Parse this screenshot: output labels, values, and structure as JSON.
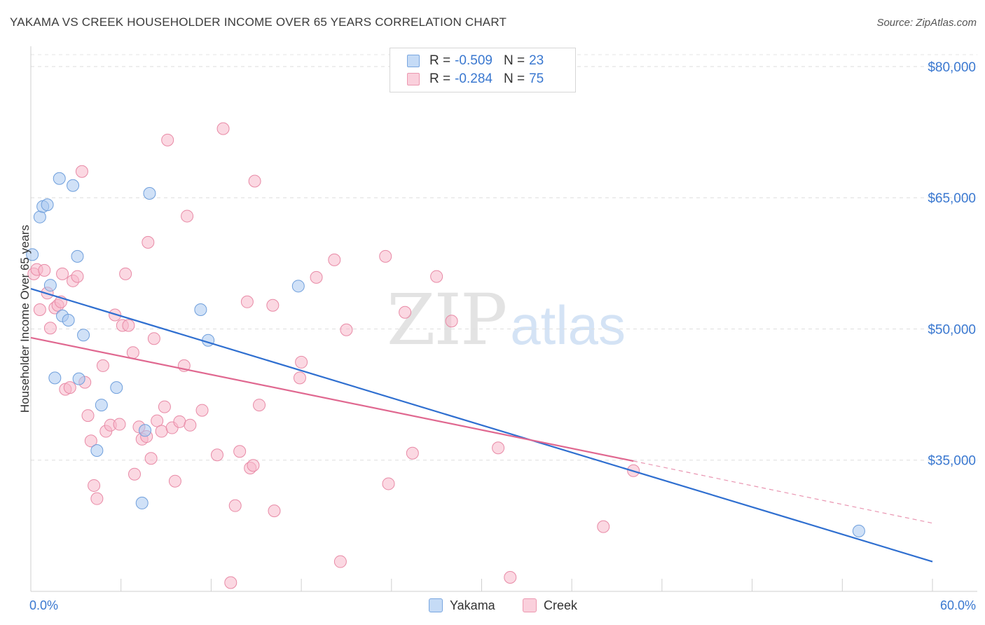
{
  "header": {
    "title": "YAKAMA VS CREEK HOUSEHOLDER INCOME OVER 65 YEARS CORRELATION CHART",
    "source": "Source: ZipAtlas.com"
  },
  "legend": {
    "rows": [
      {
        "r_label": "R =",
        "r_value": "-0.509",
        "n_label": "N =",
        "n_value": "23",
        "color": "#a9c8f0"
      },
      {
        "r_label": "R =",
        "r_value": "-0.284",
        "n_label": "N =",
        "n_value": "75",
        "color": "#f7b8cb"
      }
    ]
  },
  "watermark": {
    "zip": "ZIP",
    "atlas": "atlas"
  },
  "chart_data": {
    "type": "scatter",
    "title": "YAKAMA VS CREEK HOUSEHOLDER INCOME OVER 65 YEARS CORRELATION CHART",
    "xlabel": "",
    "ylabel": "Householder Income Over 65 years",
    "xlim": [
      0,
      60
    ],
    "ylim": [
      20000,
      82000
    ],
    "x_tick_labels": [
      "0.0%",
      "60.0%"
    ],
    "y_ticks": [
      35000,
      50000,
      65000,
      80000
    ],
    "y_tick_labels": [
      "$35,000",
      "$50,000",
      "$65,000",
      "$80,000"
    ],
    "grid": true,
    "legend_position": "bottom-center",
    "series": [
      {
        "name": "Yakama",
        "color": "#a9c8f0",
        "stroke": "#6f9fdc",
        "line_color": "#2f6fd0",
        "trend": {
          "x": [
            0,
            60
          ],
          "y": [
            54600,
            23400
          ]
        },
        "points": [
          [
            0.1,
            58500
          ],
          [
            0.6,
            62800
          ],
          [
            0.8,
            64000
          ],
          [
            1.1,
            64200
          ],
          [
            1.3,
            55000
          ],
          [
            1.6,
            44400
          ],
          [
            1.9,
            67200
          ],
          [
            2.1,
            51500
          ],
          [
            2.5,
            51000
          ],
          [
            2.8,
            66400
          ],
          [
            3.1,
            58300
          ],
          [
            3.2,
            44300
          ],
          [
            3.5,
            49300
          ],
          [
            4.4,
            36100
          ],
          [
            4.7,
            41300
          ],
          [
            5.7,
            43300
          ],
          [
            7.4,
            30100
          ],
          [
            7.6,
            38400
          ],
          [
            7.9,
            65500
          ],
          [
            11.3,
            52200
          ],
          [
            11.8,
            48700
          ],
          [
            17.8,
            54900
          ],
          [
            55.1,
            26900
          ]
        ]
      },
      {
        "name": "Creek",
        "color": "#f7b8cb",
        "stroke": "#e88aa6",
        "line_color": "#e06890",
        "trend": {
          "x": [
            0,
            40.1
          ],
          "y": [
            49000,
            34900
          ],
          "dashed_to": {
            "x": 60,
            "y": 27800
          }
        },
        "points": [
          [
            0.2,
            56300
          ],
          [
            0.4,
            56800
          ],
          [
            0.6,
            52200
          ],
          [
            0.9,
            56700
          ],
          [
            1.1,
            54100
          ],
          [
            1.3,
            50100
          ],
          [
            1.6,
            52400
          ],
          [
            1.8,
            52700
          ],
          [
            2.1,
            56300
          ],
          [
            2.3,
            43100
          ],
          [
            2.6,
            43300
          ],
          [
            2.8,
            55500
          ],
          [
            3.1,
            56000
          ],
          [
            3.4,
            68000
          ],
          [
            3.6,
            43900
          ],
          [
            3.8,
            40100
          ],
          [
            4.0,
            37200
          ],
          [
            4.2,
            32100
          ],
          [
            4.4,
            30600
          ],
          [
            4.8,
            45800
          ],
          [
            5.0,
            38300
          ],
          [
            5.3,
            39000
          ],
          [
            5.6,
            51600
          ],
          [
            5.9,
            39100
          ],
          [
            6.1,
            50400
          ],
          [
            6.3,
            56300
          ],
          [
            6.5,
            50400
          ],
          [
            6.8,
            47300
          ],
          [
            6.9,
            33400
          ],
          [
            7.2,
            38800
          ],
          [
            7.4,
            37400
          ],
          [
            7.7,
            37700
          ],
          [
            7.8,
            59900
          ],
          [
            8.0,
            35200
          ],
          [
            8.2,
            48900
          ],
          [
            8.4,
            39500
          ],
          [
            8.7,
            38300
          ],
          [
            8.9,
            41100
          ],
          [
            9.1,
            71600
          ],
          [
            9.4,
            38700
          ],
          [
            9.6,
            32600
          ],
          [
            9.9,
            39400
          ],
          [
            10.2,
            45800
          ],
          [
            10.4,
            62900
          ],
          [
            10.6,
            39000
          ],
          [
            11.4,
            40700
          ],
          [
            12.4,
            35600
          ],
          [
            13.3,
            21000
          ],
          [
            13.6,
            29800
          ],
          [
            13.9,
            36000
          ],
          [
            14.4,
            53100
          ],
          [
            14.6,
            34100
          ],
          [
            14.8,
            34400
          ],
          [
            14.9,
            66900
          ],
          [
            15.2,
            41300
          ],
          [
            16.2,
            29200
          ],
          [
            16.1,
            52700
          ],
          [
            17.9,
            44400
          ],
          [
            18.0,
            46200
          ],
          [
            19.0,
            55900
          ],
          [
            20.2,
            57900
          ],
          [
            20.6,
            23400
          ],
          [
            21.0,
            49900
          ],
          [
            23.6,
            58300
          ],
          [
            23.8,
            32300
          ],
          [
            24.9,
            51900
          ],
          [
            25.4,
            35800
          ],
          [
            27.0,
            56000
          ],
          [
            28.0,
            50900
          ],
          [
            31.1,
            36400
          ],
          [
            31.9,
            21600
          ],
          [
            38.1,
            27400
          ],
          [
            40.1,
            33800
          ],
          [
            12.8,
            72900
          ],
          [
            2.0,
            53100
          ]
        ]
      }
    ]
  }
}
